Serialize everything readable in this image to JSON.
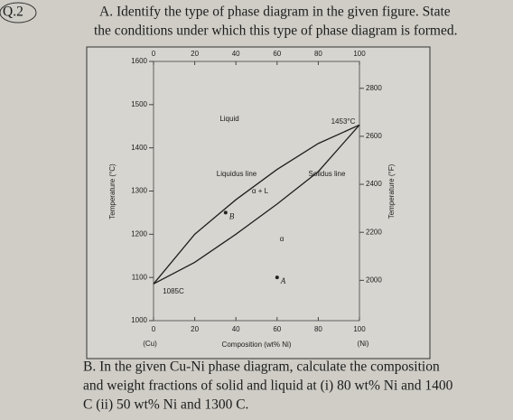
{
  "question": {
    "number": "Q.2",
    "part_a": [
      "A. Identify the type of phase diagram in the given figure. State",
      "the conditions under which this type of phase diagram is formed."
    ],
    "part_b": [
      "B. In the given Cu-Ni phase diagram, calculate the composition",
      "and weight fractions of solid and liquid at (i) 80 wt% Ni and 1400",
      "C (ii) 50 wt% Ni and 1300 C."
    ]
  },
  "chart_data": {
    "type": "line",
    "x_label": "Composition (wt% Ni)",
    "y_label": "Temperature (°C)",
    "y2_label": "Temperature (°F)",
    "x_end_labels": [
      "(Cu)",
      "(Ni)"
    ],
    "xlim": [
      0,
      100
    ],
    "xticks": [
      0,
      20,
      40,
      60,
      80,
      100
    ],
    "ylim": [
      1000,
      1600
    ],
    "yticks": [
      1000,
      1100,
      1200,
      1300,
      1400,
      1500,
      1600
    ],
    "y2lim": [
      1832,
      2912
    ],
    "y2ticks": [
      2000,
      2200,
      2400,
      2600,
      2800
    ],
    "series": [
      {
        "name": "Liquidus line",
        "color": "#1e1e1e",
        "x": [
          0,
          20,
          40,
          60,
          80,
          100
        ],
        "values": [
          1085,
          1200,
          1280,
          1350,
          1410,
          1453
        ]
      },
      {
        "name": "Solidus line",
        "color": "#1e1e1e",
        "x": [
          0,
          20,
          40,
          60,
          80,
          100
        ],
        "values": [
          1085,
          1135,
          1200,
          1270,
          1345,
          1453
        ]
      }
    ],
    "points": {
      "labels": [
        "B",
        "A"
      ],
      "x": [
        35,
        60
      ],
      "values": [
        1250,
        1100
      ]
    },
    "annotations": [
      "Liquid",
      "1453°C",
      "α + L",
      "α",
      "1085C"
    ]
  }
}
